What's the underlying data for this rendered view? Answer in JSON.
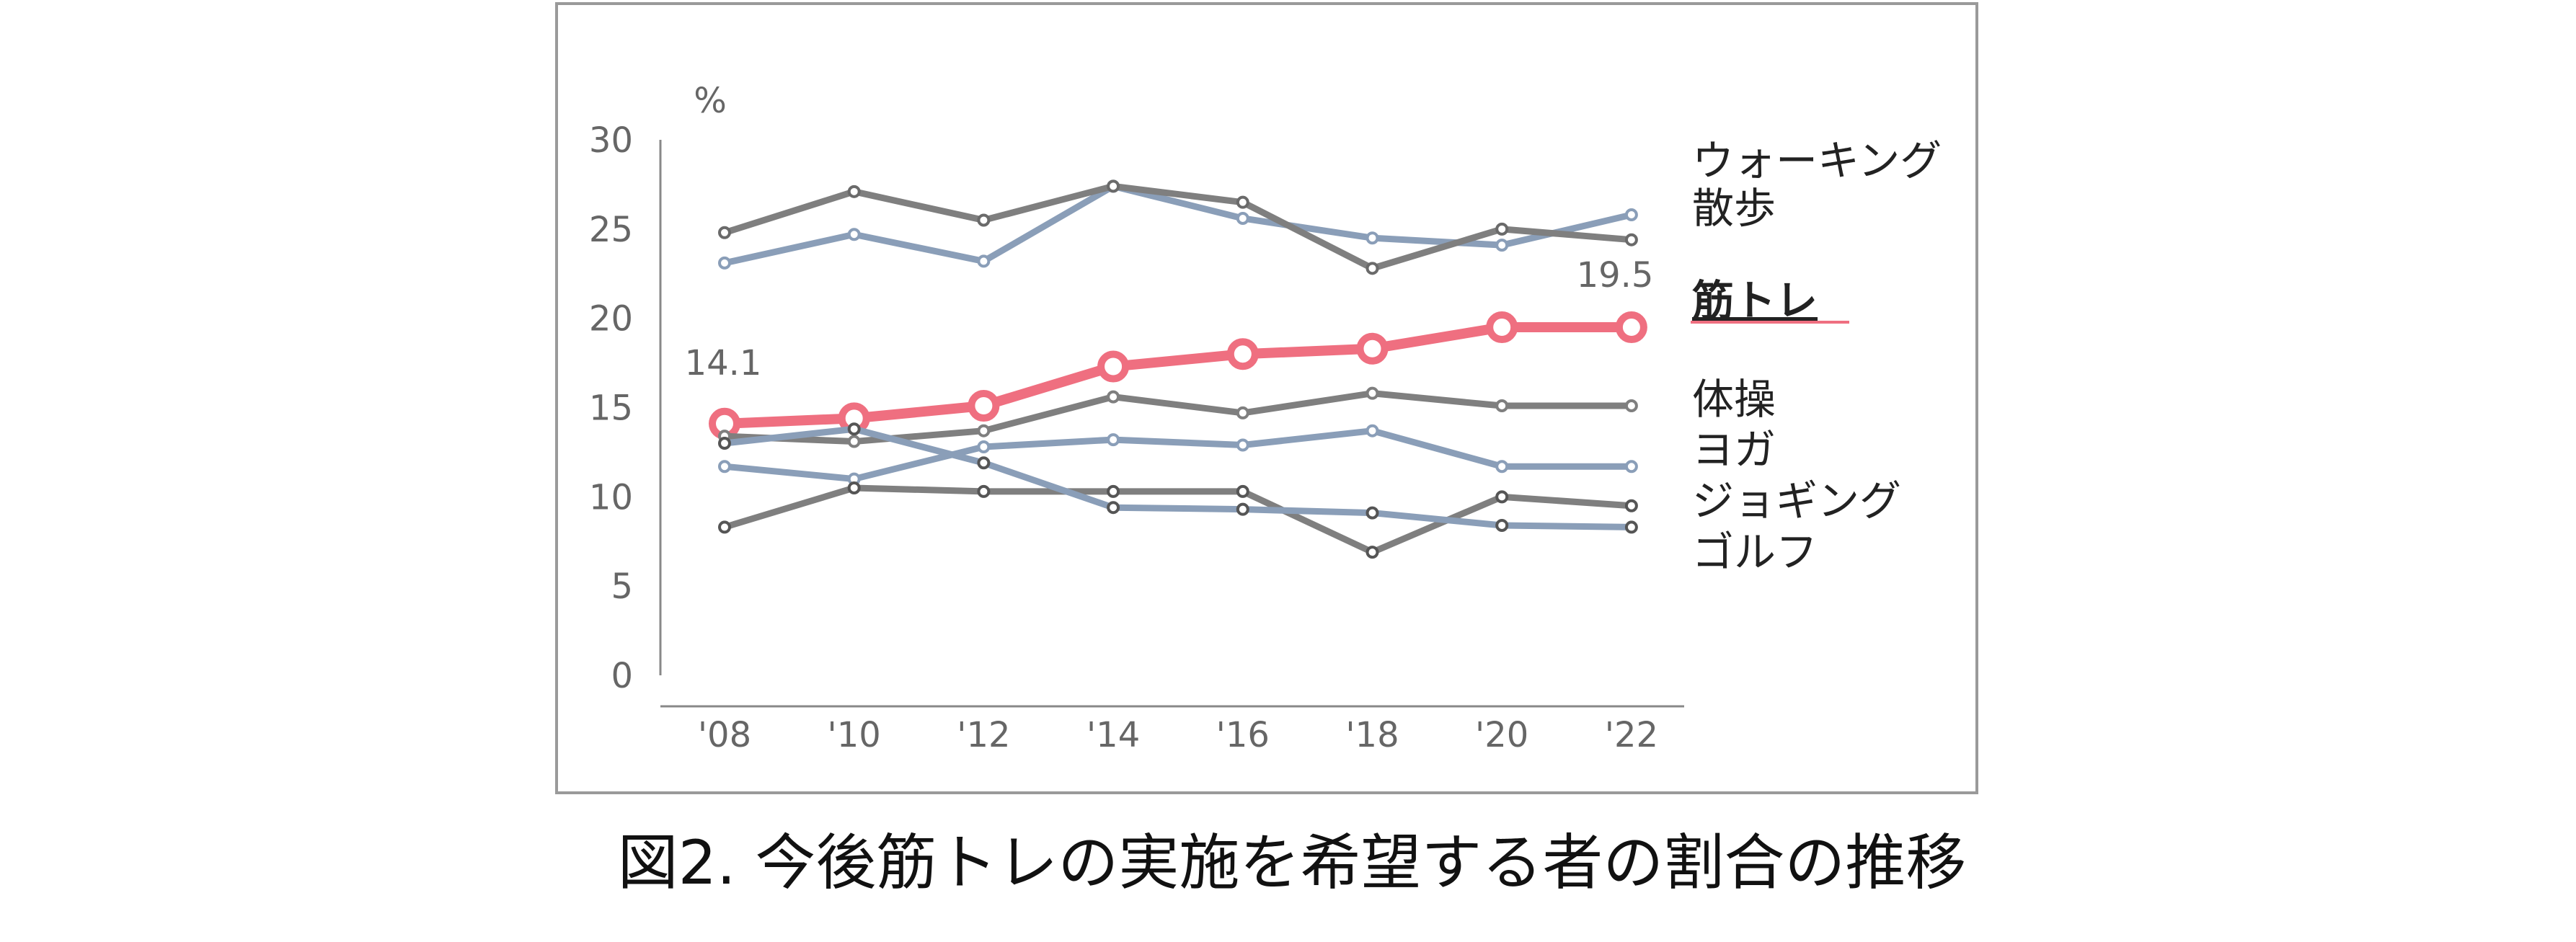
{
  "caption": "図2. 今後筋トレの実施を希望する者の割合の推移",
  "chart_data": {
    "type": "line",
    "title": "",
    "ylabel": "%",
    "xlabel": "",
    "categories": [
      "'08",
      "'10",
      "'12",
      "'14",
      "'16",
      "'18",
      "'20",
      "'22"
    ],
    "ylim": [
      0,
      30
    ],
    "yticks": [
      0,
      5,
      10,
      15,
      20,
      25,
      30
    ],
    "grid": false,
    "legend": "right (labels at line ends)",
    "series": [
      {
        "name": "ウォーキング",
        "color": "#8a9eb8",
        "marker": "#8a9eb8",
        "values": [
          23.1,
          24.7,
          23.2,
          27.4,
          25.6,
          24.5,
          24.1,
          25.8
        ]
      },
      {
        "name": "散歩",
        "color": "#7f7f7f",
        "marker": "#6a6a6a",
        "values": [
          24.8,
          27.1,
          25.5,
          27.4,
          26.5,
          22.8,
          25.0,
          24.4
        ]
      },
      {
        "name": "筋トレ",
        "color": "#ef6f80",
        "marker": "#ef6f80",
        "highlight": true,
        "values": [
          14.1,
          14.4,
          15.1,
          17.3,
          18.0,
          18.3,
          19.5,
          19.5
        ]
      },
      {
        "name": "体操",
        "color": "#7f7f7f",
        "marker": "#7f7f7f",
        "values": [
          13.4,
          13.1,
          13.7,
          15.6,
          14.7,
          15.8,
          15.1,
          15.1
        ]
      },
      {
        "name": "ヨガ",
        "color": "#8a9eb8",
        "marker": "#8a9eb8",
        "values": [
          11.7,
          11.0,
          12.8,
          13.2,
          12.9,
          13.7,
          11.7,
          11.7
        ]
      },
      {
        "name": "ジョギング",
        "color": "#7f7f7f",
        "marker": "#555555",
        "values": [
          8.3,
          10.5,
          10.3,
          10.3,
          10.3,
          6.9,
          10.0,
          9.5
        ]
      },
      {
        "name": "ゴルフ",
        "color": "#8a9eb8",
        "marker": "#555555",
        "values": [
          13.0,
          13.8,
          11.9,
          9.4,
          9.3,
          9.1,
          8.4,
          8.3
        ]
      }
    ],
    "annotations": [
      {
        "series": "筋トレ",
        "x": "'08",
        "text": "14.1"
      },
      {
        "series": "筋トレ",
        "x": "'22",
        "text": "19.5"
      }
    ]
  }
}
